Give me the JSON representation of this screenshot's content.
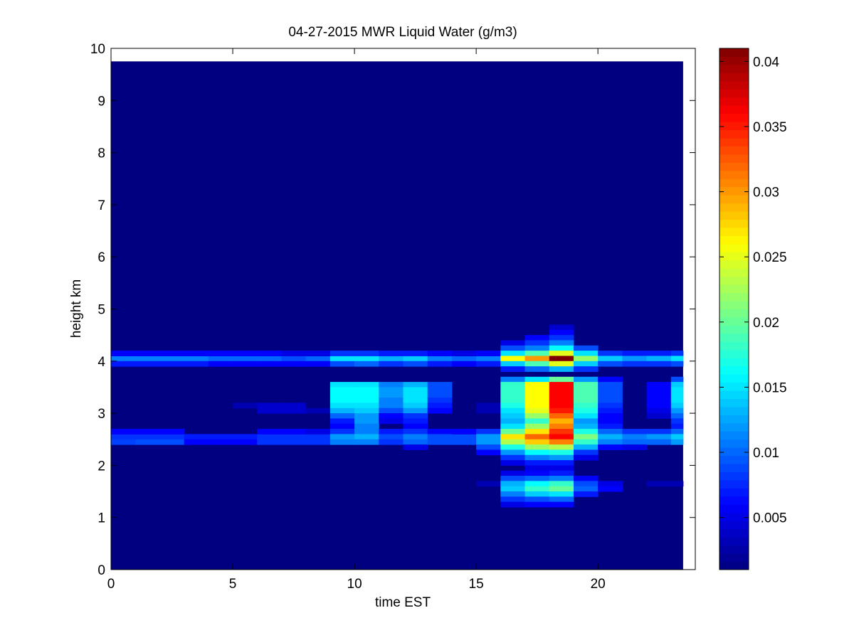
{
  "chart_data": {
    "type": "heatmap",
    "title": "04-27-2015 MWR Liquid Water (g/m3)",
    "xlabel": "time EST",
    "ylabel": "height km",
    "xlim": [
      0,
      24
    ],
    "ylim": [
      0,
      10
    ],
    "x_ticks": [
      "0",
      "5",
      "10",
      "15",
      "20"
    ],
    "x_tick_values": [
      0,
      5,
      10,
      15,
      20
    ],
    "y_ticks": [
      "0",
      "1",
      "2",
      "3",
      "4",
      "5",
      "6",
      "7",
      "8",
      "9",
      "10"
    ],
    "y_tick_values": [
      0,
      1,
      2,
      3,
      4,
      5,
      6,
      7,
      8,
      9,
      10
    ],
    "colormap": "jet",
    "background_value": 0.001,
    "data_extent": {
      "x": [
        0,
        23.5
      ],
      "y": [
        0,
        9.75
      ]
    },
    "colorbar": {
      "range": [
        0.001,
        0.041
      ],
      "ticks": [
        "0.005",
        "0.01",
        "0.015",
        "0.02",
        "0.025",
        "0.03",
        "0.035",
        "0.04"
      ],
      "tick_values": [
        0.005,
        0.01,
        0.015,
        0.02,
        0.025,
        0.03,
        0.035,
        0.04
      ]
    },
    "columns": [
      {
        "x": [
          0,
          1
        ],
        "values": {
          "4.0": 0.011,
          "3.9": 0.007,
          "4.1": 0.006,
          "2.5": 0.008,
          "2.4": 0.0085,
          "2.6": 0.006
        }
      },
      {
        "x": [
          1,
          2
        ],
        "values": {
          "4.0": 0.011,
          "3.9": 0.007,
          "4.1": 0.006,
          "2.5": 0.008,
          "2.4": 0.009,
          "2.6": 0.006
        }
      },
      {
        "x": [
          2,
          3
        ],
        "values": {
          "4.0": 0.011,
          "3.9": 0.007,
          "4.1": 0.006,
          "2.5": 0.008,
          "2.4": 0.009,
          "2.6": 0.006
        }
      },
      {
        "x": [
          3,
          4
        ],
        "values": {
          "4.0": 0.011,
          "3.9": 0.007,
          "4.1": 0.006,
          "2.5": 0.007,
          "2.4": 0.006
        }
      },
      {
        "x": [
          4,
          5
        ],
        "values": {
          "4.0": 0.01,
          "3.9": 0.006,
          "4.1": 0.006,
          "2.5": 0.007,
          "2.4": 0.006
        }
      },
      {
        "x": [
          5,
          6
        ],
        "values": {
          "4.0": 0.01,
          "3.9": 0.006,
          "4.1": 0.006,
          "2.5": 0.007,
          "2.4": 0.006,
          "3.1": 0.003
        }
      },
      {
        "x": [
          6,
          7
        ],
        "values": {
          "4.0": 0.01,
          "3.9": 0.006,
          "4.1": 0.006,
          "2.5": 0.008,
          "2.4": 0.008,
          "2.6": 0.006,
          "3.1": 0.004,
          "3.0": 0.004
        }
      },
      {
        "x": [
          7,
          8
        ],
        "values": {
          "4.0": 0.009,
          "3.9": 0.006,
          "4.1": 0.005,
          "2.5": 0.008,
          "2.4": 0.008,
          "2.6": 0.006,
          "3.1": 0.004,
          "3.0": 0.004
        }
      },
      {
        "x": [
          8,
          9
        ],
        "values": {
          "4.0": 0.01,
          "3.9": 0.006,
          "4.1": 0.005,
          "2.5": 0.008,
          "2.4": 0.008,
          "2.6": 0.005,
          "3.0": 0.003
        }
      },
      {
        "x": [
          9,
          10
        ],
        "values": {
          "4.0": 0.015,
          "3.9": 0.009,
          "4.1": 0.008,
          "3.5": 0.015,
          "3.4": 0.016,
          "3.3": 0.016,
          "3.2": 0.016,
          "3.1": 0.015,
          "3.0": 0.013,
          "2.9": 0.01,
          "2.8": 0.007,
          "2.7": 0.006,
          "2.6": 0.008,
          "2.5": 0.012,
          "2.4": 0.011
        }
      },
      {
        "x": [
          10,
          11
        ],
        "values": {
          "4.0": 0.015,
          "3.9": 0.01,
          "4.1": 0.008,
          "3.5": 0.015,
          "3.4": 0.016,
          "3.3": 0.016,
          "3.2": 0.016,
          "3.1": 0.015,
          "3.0": 0.014,
          "2.9": 0.012,
          "2.8": 0.012,
          "2.7": 0.011,
          "2.6": 0.011,
          "2.5": 0.013,
          "2.4": 0.011
        }
      },
      {
        "x": [
          11,
          12
        ],
        "values": {
          "4.0": 0.013,
          "3.9": 0.008,
          "4.1": 0.007,
          "3.5": 0.011,
          "3.4": 0.012,
          "3.3": 0.012,
          "3.2": 0.011,
          "3.1": 0.011,
          "3.0": 0.009,
          "2.9": 0.006,
          "2.8": 0.005,
          "2.6": 0.007,
          "2.5": 0.009,
          "2.4": 0.008
        }
      },
      {
        "x": [
          12,
          13
        ],
        "values": {
          "4.0": 0.014,
          "3.9": 0.009,
          "4.1": 0.007,
          "3.5": 0.013,
          "3.4": 0.015,
          "3.3": 0.015,
          "3.2": 0.015,
          "3.1": 0.014,
          "3.0": 0.012,
          "2.9": 0.008,
          "2.8": 0.007,
          "2.7": 0.006,
          "2.6": 0.008,
          "2.5": 0.011,
          "2.4": 0.01,
          "2.3": 0.005
        }
      },
      {
        "x": [
          13,
          14
        ],
        "values": {
          "4.0": 0.011,
          "3.9": 0.007,
          "4.1": 0.006,
          "3.5": 0.009,
          "3.4": 0.009,
          "3.3": 0.009,
          "3.2": 0.008,
          "3.1": 0.007,
          "3.0": 0.006,
          "2.6": 0.006,
          "2.5": 0.009,
          "2.4": 0.009
        }
      },
      {
        "x": [
          14,
          15
        ],
        "values": {
          "4.0": 0.01,
          "3.9": 0.006,
          "4.1": 0.005,
          "2.5": 0.009,
          "2.4": 0.009,
          "2.6": 0.006
        }
      },
      {
        "x": [
          15,
          16
        ],
        "values": {
          "4.0": 0.011,
          "3.9": 0.007,
          "4.1": 0.006,
          "3.1": 0.003,
          "3.0": 0.003,
          "2.6": 0.008,
          "2.5": 0.012,
          "2.4": 0.012,
          "2.3": 0.009,
          "2.2": 0.006,
          "1.6": 0.003
        }
      },
      {
        "x": [
          16,
          17
        ],
        "values": {
          "4.3": 0.005,
          "4.2": 0.009,
          "4.1": 0.015,
          "4.0": 0.026,
          "3.9": 0.014,
          "3.8": 0.007,
          "3.6": 0.011,
          "3.5": 0.018,
          "3.4": 0.018,
          "3.3": 0.018,
          "3.2": 0.018,
          "3.1": 0.017,
          "3.0": 0.015,
          "2.9": 0.014,
          "2.8": 0.013,
          "2.7": 0.015,
          "2.6": 0.02,
          "2.5": 0.027,
          "2.4": 0.023,
          "2.3": 0.017,
          "2.2": 0.012,
          "2.1": 0.008,
          "2.0": 0.005,
          "1.8": 0.005,
          "1.7": 0.009,
          "1.6": 0.013,
          "1.5": 0.014,
          "1.4": 0.011,
          "1.3": 0.008,
          "1.2": 0.005
        }
      },
      {
        "x": [
          17,
          18
        ],
        "values": {
          "4.4": 0.006,
          "4.3": 0.008,
          "4.2": 0.011,
          "4.1": 0.019,
          "4.0": 0.03,
          "3.9": 0.019,
          "3.8": 0.01,
          "3.6": 0.015,
          "3.5": 0.026,
          "3.4": 0.026,
          "3.3": 0.026,
          "3.2": 0.026,
          "3.1": 0.026,
          "3.0": 0.025,
          "2.9": 0.022,
          "2.8": 0.018,
          "2.7": 0.022,
          "2.6": 0.027,
          "2.5": 0.032,
          "2.4": 0.028,
          "2.3": 0.022,
          "2.2": 0.016,
          "2.1": 0.011,
          "2.0": 0.007,
          "1.9": 0.005,
          "1.8": 0.006,
          "1.7": 0.01,
          "1.6": 0.016,
          "1.5": 0.018,
          "1.4": 0.014,
          "1.3": 0.009,
          "1.2": 0.006
        }
      },
      {
        "x": [
          18,
          19
        ],
        "values": {
          "4.6": 0.004,
          "4.5": 0.006,
          "4.4": 0.008,
          "4.3": 0.011,
          "4.2": 0.016,
          "4.1": 0.025,
          "4.0": 0.041,
          "3.9": 0.025,
          "3.8": 0.013,
          "3.6": 0.02,
          "3.5": 0.036,
          "3.4": 0.036,
          "3.3": 0.036,
          "3.2": 0.036,
          "3.1": 0.036,
          "3.0": 0.035,
          "2.9": 0.032,
          "2.8": 0.029,
          "2.7": 0.031,
          "2.6": 0.034,
          "2.5": 0.036,
          "2.4": 0.031,
          "2.3": 0.023,
          "2.2": 0.017,
          "2.1": 0.012,
          "2.0": 0.007,
          "1.9": 0.005,
          "1.8": 0.007,
          "1.7": 0.011,
          "1.6": 0.018,
          "1.5": 0.02,
          "1.4": 0.015,
          "1.3": 0.01,
          "1.2": 0.006
        }
      },
      {
        "x": [
          19,
          20
        ],
        "values": {
          "4.2": 0.009,
          "4.1": 0.015,
          "4.0": 0.022,
          "3.9": 0.014,
          "3.8": 0.008,
          "3.6": 0.012,
          "3.5": 0.019,
          "3.4": 0.019,
          "3.3": 0.019,
          "3.2": 0.019,
          "3.1": 0.018,
          "3.0": 0.017,
          "2.9": 0.015,
          "2.8": 0.012,
          "2.7": 0.013,
          "2.6": 0.017,
          "2.5": 0.021,
          "2.4": 0.018,
          "2.3": 0.013,
          "2.2": 0.008,
          "2.1": 0.005,
          "1.7": 0.006,
          "1.6": 0.009,
          "1.5": 0.01,
          "1.4": 0.007
        }
      },
      {
        "x": [
          20,
          21
        ],
        "values": {
          "4.1": 0.008,
          "4.0": 0.014,
          "3.9": 0.009,
          "3.6": 0.006,
          "3.5": 0.009,
          "3.4": 0.009,
          "3.3": 0.009,
          "3.2": 0.009,
          "3.1": 0.008,
          "3.0": 0.007,
          "2.9": 0.006,
          "2.8": 0.006,
          "2.7": 0.007,
          "2.6": 0.01,
          "2.5": 0.013,
          "2.4": 0.011,
          "2.3": 0.006,
          "1.6": 0.005,
          "1.5": 0.006
        }
      },
      {
        "x": [
          21,
          22
        ],
        "values": {
          "4.1": 0.007,
          "4.0": 0.012,
          "3.9": 0.008,
          "2.6": 0.008,
          "2.5": 0.011,
          "2.4": 0.01,
          "2.3": 0.005
        }
      },
      {
        "x": [
          22,
          23
        ],
        "values": {
          "4.1": 0.007,
          "4.0": 0.013,
          "3.9": 0.008,
          "3.5": 0.006,
          "3.4": 0.006,
          "3.3": 0.006,
          "3.2": 0.006,
          "3.1": 0.006,
          "3.0": 0.005,
          "2.9": 0.004,
          "2.6": 0.008,
          "2.5": 0.012,
          "2.4": 0.01,
          "1.6": 0.003
        }
      },
      {
        "x": [
          23,
          23.5
        ],
        "values": {
          "4.1": 0.008,
          "4.0": 0.015,
          "3.9": 0.009,
          "3.6": 0.009,
          "3.5": 0.014,
          "3.4": 0.015,
          "3.3": 0.015,
          "3.2": 0.015,
          "3.1": 0.014,
          "3.0": 0.012,
          "2.9": 0.01,
          "2.8": 0.008,
          "2.7": 0.007,
          "2.6": 0.01,
          "2.5": 0.014,
          "2.4": 0.012,
          "1.6": 0.003
        }
      }
    ]
  }
}
